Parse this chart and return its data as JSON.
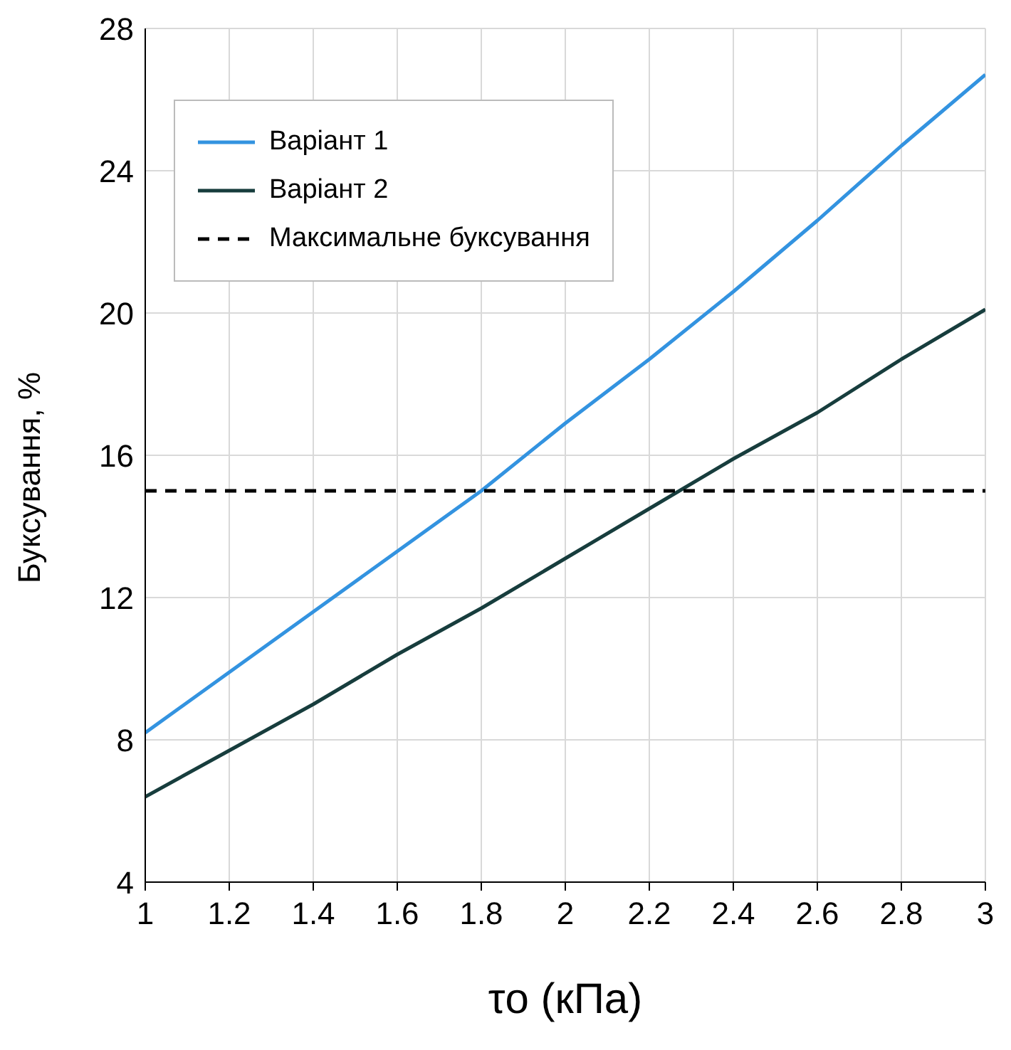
{
  "chart_data": {
    "type": "line",
    "xlabel": "τo (кПа)",
    "ylabel": "Буксування, %",
    "x": [
      1,
      1.2,
      1.4,
      1.6,
      1.8,
      2,
      2.2,
      2.4,
      2.6,
      2.8,
      3
    ],
    "series": [
      {
        "name": "Варіант 1",
        "color": "#3393e0",
        "values": [
          8.2,
          9.9,
          11.6,
          13.3,
          15.0,
          16.9,
          18.7,
          20.6,
          22.6,
          24.7,
          26.7
        ]
      },
      {
        "name": "Варіант 2",
        "color": "#173d3d",
        "values": [
          6.4,
          7.7,
          9.0,
          10.4,
          11.7,
          13.1,
          14.5,
          15.9,
          17.2,
          18.7,
          20.1
        ]
      },
      {
        "name": "Максимальне буксування",
        "color": "#000000",
        "line_style": "dashed",
        "x": [
          1,
          3
        ],
        "values": [
          15,
          15
        ]
      }
    ],
    "xlim": [
      1,
      3
    ],
    "xticks": [
      1,
      1.2,
      1.4,
      1.6,
      1.8,
      2,
      2.2,
      2.4,
      2.6,
      2.8,
      3
    ],
    "ylim": [
      4,
      28
    ],
    "yticks": [
      4,
      8,
      12,
      16,
      20,
      24,
      28
    ],
    "grid": true,
    "legend": "top left",
    "marker": "none",
    "line_style": "solid"
  }
}
